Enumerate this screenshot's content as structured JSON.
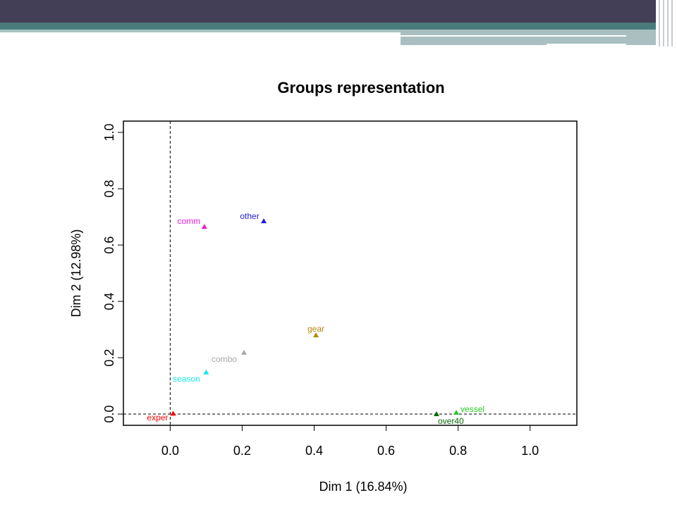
{
  "chart_data": {
    "type": "scatter",
    "title": "Groups representation",
    "xlabel": "Dim 1 (16.84%)",
    "ylabel": "Dim 2 (12.98%)",
    "xlim": [
      -0.13,
      1.13
    ],
    "ylim": [
      -0.04,
      1.04
    ],
    "x_ticks": [
      0.0,
      0.2,
      0.4,
      0.6,
      0.8,
      1.0
    ],
    "x_tick_labels": [
      "0.0",
      "0.2",
      "0.4",
      "0.6",
      "0.8",
      "1.0"
    ],
    "y_ticks": [
      0.0,
      0.2,
      0.4,
      0.6,
      0.8,
      1.0
    ],
    "y_tick_labels": [
      "0.0",
      "0.2",
      "0.4",
      "0.6",
      "0.8",
      "1.0"
    ],
    "reference_lines": {
      "x": 0,
      "y": 0,
      "style": "dashed"
    },
    "grid": false,
    "marker": "triangle",
    "points": [
      {
        "label": "exper",
        "x": 0.008,
        "y": 0.002,
        "color": "#ff0000"
      },
      {
        "label": "comm",
        "x": 0.095,
        "y": 0.665,
        "color": "#e91ed6"
      },
      {
        "label": "other",
        "x": 0.26,
        "y": 0.685,
        "color": "#1d1ddb"
      },
      {
        "label": "gear",
        "x": 0.405,
        "y": 0.28,
        "color": "#b8860b"
      },
      {
        "label": "combo",
        "x": 0.205,
        "y": 0.218,
        "color": "#a9a9a9"
      },
      {
        "label": "season",
        "x": 0.1,
        "y": 0.148,
        "color": "#19e6e6"
      },
      {
        "label": "vessel",
        "x": 0.795,
        "y": 0.005,
        "color": "#22cc22"
      },
      {
        "label": "over40",
        "x": 0.74,
        "y": 0.0,
        "color": "#0a6a0a"
      }
    ]
  }
}
